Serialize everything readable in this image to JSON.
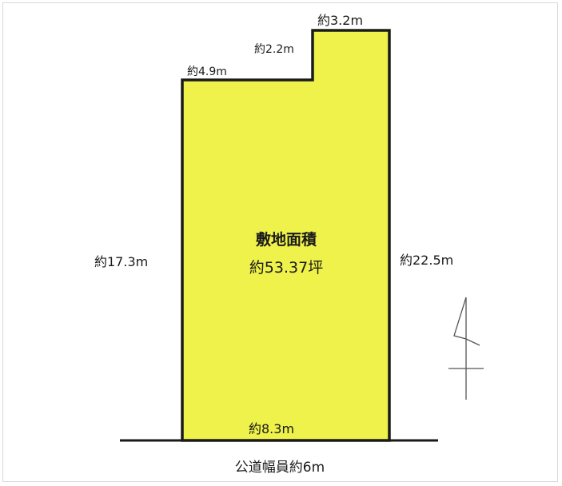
{
  "colors": {
    "lot_fill": "#eef24a",
    "outline": "#1a1a1a"
  },
  "lot": {
    "area_label": "敷地面積",
    "area_value": "約53.37坪"
  },
  "dimensions": {
    "top_left": "約4.9m",
    "step_vertical": "約2.2m",
    "top_right": "約3.2m",
    "left_side": "約17.3m",
    "right_side": "約22.5m",
    "frontage": "約8.3m"
  },
  "road": {
    "label": "公道幅員約6m"
  },
  "compass": {
    "symbol": "north-arrow-icon"
  }
}
